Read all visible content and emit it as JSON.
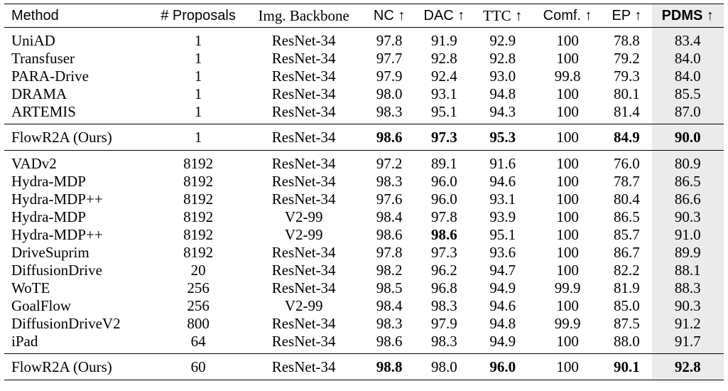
{
  "headers": {
    "method": "Method",
    "proposals": "# Proposals",
    "backbone": "Img. Backbone",
    "nc": "NC ↑",
    "dac": "DAC ↑",
    "ttc": "TTC ↑",
    "comf": "Comf. ↑",
    "ep": "EP ↑",
    "pdms": "PDMS ↑"
  },
  "shading_color": "#ebebeb",
  "group1": [
    {
      "method": "UniAD",
      "proposals": "1",
      "backbone": "ResNet-34",
      "nc": "97.8",
      "dac": "91.9",
      "ttc": "92.9",
      "comf": "100",
      "ep": "78.8",
      "pdms": "83.4"
    },
    {
      "method": "Transfuser",
      "proposals": "1",
      "backbone": "ResNet-34",
      "nc": "97.7",
      "dac": "92.8",
      "ttc": "92.8",
      "comf": "100",
      "ep": "79.2",
      "pdms": "84.0"
    },
    {
      "method": "PARA-Drive",
      "proposals": "1",
      "backbone": "ResNet-34",
      "nc": "97.9",
      "dac": "92.4",
      "ttc": "93.0",
      "comf": "99.8",
      "ep": "79.3",
      "pdms": "84.0"
    },
    {
      "method": "DRAMA",
      "proposals": "1",
      "backbone": "ResNet-34",
      "nc": "98.0",
      "dac": "93.1",
      "ttc": "94.8",
      "comf": "100",
      "ep": "80.1",
      "pdms": "85.5"
    },
    {
      "method": "ARTEMIS",
      "proposals": "1",
      "backbone": "ResNet-34",
      "nc": "98.3",
      "dac": "95.1",
      "ttc": "94.3",
      "comf": "100",
      "ep": "81.4",
      "pdms": "87.0"
    }
  ],
  "ours1": {
    "method": "FlowR2A (Ours)",
    "proposals": "1",
    "backbone": "ResNet-34",
    "nc": "98.6",
    "dac": "97.3",
    "ttc": "95.3",
    "comf": "100",
    "ep": "84.9",
    "pdms": "90.0"
  },
  "group2": [
    {
      "method": "VADv2",
      "proposals": "8192",
      "backbone": "ResNet-34",
      "nc": "97.2",
      "dac": "89.1",
      "ttc": "91.6",
      "comf": "100",
      "ep": "76.0",
      "pdms": "80.9"
    },
    {
      "method": "Hydra-MDP",
      "proposals": "8192",
      "backbone": "ResNet-34",
      "nc": "98.3",
      "dac": "96.0",
      "ttc": "94.6",
      "comf": "100",
      "ep": "78.7",
      "pdms": "86.5"
    },
    {
      "method": "Hydra-MDP++",
      "proposals": "8192",
      "backbone": "ResNet-34",
      "nc": "97.6",
      "dac": "96.0",
      "ttc": "93.1",
      "comf": "100",
      "ep": "80.4",
      "pdms": "86.6"
    },
    {
      "method": "Hydra-MDP",
      "proposals": "8192",
      "backbone": "V2-99",
      "nc": "98.4",
      "dac": "97.8",
      "ttc": "93.9",
      "comf": "100",
      "ep": "86.5",
      "pdms": "90.3"
    },
    {
      "method": "Hydra-MDP++",
      "proposals": "8192",
      "backbone": "V2-99",
      "nc": "98.6",
      "dac": "98.6",
      "ttc": "95.1",
      "comf": "100",
      "ep": "85.7",
      "pdms": "91.0"
    },
    {
      "method": "DriveSuprim",
      "proposals": "8192",
      "backbone": "ResNet-34",
      "nc": "97.8",
      "dac": "97.3",
      "ttc": "93.6",
      "comf": "100",
      "ep": "86.7",
      "pdms": "89.9"
    },
    {
      "method": "DiffusionDrive",
      "proposals": "20",
      "backbone": "ResNet-34",
      "nc": "98.2",
      "dac": "96.2",
      "ttc": "94.7",
      "comf": "100",
      "ep": "82.2",
      "pdms": "88.1"
    },
    {
      "method": "WoTE",
      "proposals": "256",
      "backbone": "ResNet-34",
      "nc": "98.5",
      "dac": "96.8",
      "ttc": "94.9",
      "comf": "99.9",
      "ep": "81.9",
      "pdms": "88.3"
    },
    {
      "method": "GoalFlow",
      "proposals": "256",
      "backbone": "V2-99",
      "nc": "98.4",
      "dac": "98.3",
      "ttc": "94.6",
      "comf": "100",
      "ep": "85.0",
      "pdms": "90.3"
    },
    {
      "method": "DiffusionDriveV2",
      "proposals": "800",
      "backbone": "ResNet-34",
      "nc": "98.3",
      "dac": "97.9",
      "ttc": "94.8",
      "comf": "99.9",
      "ep": "87.5",
      "pdms": "91.2"
    },
    {
      "method": "iPad",
      "proposals": "64",
      "backbone": "ResNet-34",
      "nc": "98.6",
      "dac": "98.3",
      "ttc": "94.9",
      "comf": "100",
      "ep": "88.0",
      "pdms": "91.7"
    }
  ],
  "ours2": {
    "method": "FlowR2A (Ours)",
    "proposals": "60",
    "backbone": "ResNet-34",
    "nc": "98.8",
    "dac": "98.0",
    "ttc": "96.0",
    "comf": "100",
    "ep": "90.1",
    "pdms": "92.8"
  },
  "bold_cells": {
    "ours1": [
      "nc",
      "dac",
      "ttc",
      "ep",
      "pdms"
    ],
    "ours2": [
      "nc",
      "ttc",
      "ep",
      "pdms"
    ],
    "group2_row4": [
      "dac"
    ]
  }
}
